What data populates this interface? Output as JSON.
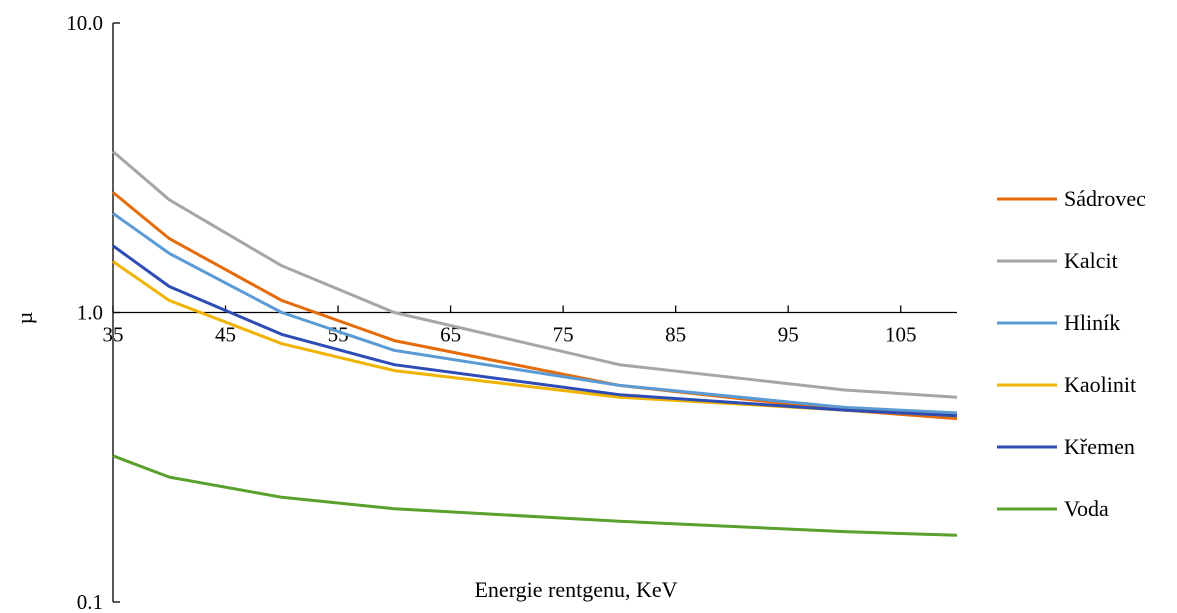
{
  "chart_data": {
    "type": "line",
    "title": "",
    "xlabel": "Energie rentgenu, KeV",
    "ylabel": "µ",
    "y_scale": "log",
    "ylim": [
      0.1,
      10.0
    ],
    "xlim": [
      35,
      110
    ],
    "x_ticks": [
      35,
      45,
      55,
      65,
      75,
      85,
      95,
      105
    ],
    "y_ticks": [
      0.1,
      1.0,
      10.0
    ],
    "y_tick_labels": [
      "0.1",
      "1.0",
      "10.0"
    ],
    "x_axis_crosses_y_at": 1.0,
    "grid": false,
    "legend_position": "right",
    "x": [
      35,
      40,
      50,
      60,
      80,
      100,
      110
    ],
    "series": [
      {
        "name": "Sádrovec",
        "color": "#E46C0A",
        "values": [
          2.6,
          1.8,
          1.1,
          0.8,
          0.56,
          0.46,
          0.43
        ]
      },
      {
        "name": "Kalcit",
        "color": "#A6A6A6",
        "values": [
          3.6,
          2.45,
          1.45,
          1.0,
          0.66,
          0.54,
          0.51
        ]
      },
      {
        "name": "Hliník",
        "color": "#5B9BD5",
        "values": [
          2.2,
          1.6,
          1.0,
          0.74,
          0.56,
          0.47,
          0.45
        ]
      },
      {
        "name": "Kaolinit",
        "color": "#F0B400",
        "values": [
          1.5,
          1.1,
          0.78,
          0.63,
          0.51,
          0.46,
          0.44
        ]
      },
      {
        "name": "Křemen",
        "color": "#2E4CB5",
        "values": [
          1.7,
          1.23,
          0.84,
          0.66,
          0.52,
          0.46,
          0.44
        ]
      },
      {
        "name": "Voda",
        "color": "#5AA02C",
        "values": [
          0.32,
          0.27,
          0.23,
          0.21,
          0.19,
          0.175,
          0.17
        ]
      }
    ]
  }
}
